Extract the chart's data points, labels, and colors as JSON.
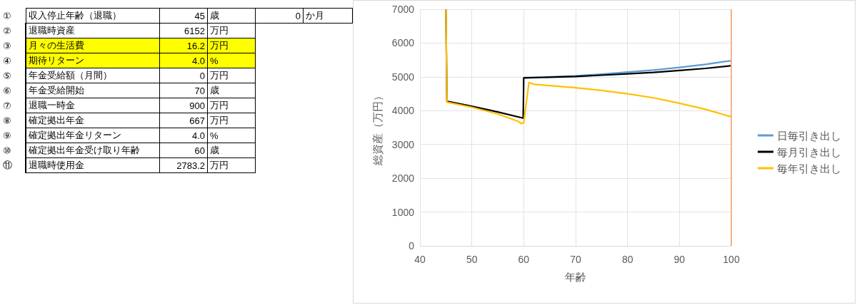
{
  "chart_data": [
    {
      "type": "other",
      "annotations": [
        "①",
        "収入停止年齢（退職）",
        "45",
        "歳",
        "0",
        "か月",
        "②",
        "退職時資産",
        "6152",
        "万円",
        "③",
        "月々の生活費",
        "16.2",
        "万円",
        "④",
        "期待リターン",
        "4.0",
        "%",
        "⑤",
        "年金受給額（月間）",
        "0",
        "万円",
        "⑥",
        "年金受給開始",
        "70",
        "歳",
        "⑦",
        "退職一時金",
        "900",
        "万円",
        "⑧",
        "確定拠出年金",
        "667",
        "万円",
        "⑨",
        "確定拠出年金リターン",
        "4.0",
        "%",
        "⑩",
        "確定拠出年金受け取り年齢",
        "60",
        "歳",
        "⑪",
        "退職時使用金",
        "2783.2",
        "万円"
      ],
      "colors": [
        "#ffffff",
        "#ffffff",
        "#ffff00",
        "#ffff00",
        "#ffffff",
        "#ffffff",
        "#ffffff",
        "#ffffff",
        "#ffffff",
        "#ffffff",
        "#ffffff"
      ]
    },
    {
      "type": "line",
      "xlabel": "年齢",
      "ylabel": "総資産（万円）",
      "xlim": [
        40,
        100
      ],
      "xticks": [
        40,
        50,
        60,
        70,
        80,
        90,
        100
      ],
      "ylim": [
        0,
        7000
      ],
      "yticks": [
        0,
        1000,
        2000,
        3000,
        4000,
        5000,
        6000,
        7000
      ],
      "grid": true,
      "legend": "right",
      "marker": "none",
      "line_style": "solid",
      "ref_lines": [
        {
          "axis": "x",
          "value": 100,
          "color": "#f4b183"
        }
      ],
      "series": [
        {
          "name": "日毎引き出し",
          "color": "#5b9bd5",
          "x": [
            60,
            65,
            70,
            75,
            80,
            85,
            90,
            95,
            100
          ],
          "values": [
            4980,
            5000,
            5030,
            5080,
            5140,
            5200,
            5280,
            5370,
            5480
          ]
        },
        {
          "name": "毎月引き出し",
          "color": "#000000",
          "x": [
            45,
            45.2,
            50,
            55,
            59.9,
            60,
            65,
            70,
            75,
            80,
            85,
            90,
            95,
            100
          ],
          "values": [
            7000,
            4280,
            4130,
            3960,
            3780,
            4970,
            4990,
            5010,
            5050,
            5090,
            5130,
            5190,
            5250,
            5330
          ]
        },
        {
          "name": "毎年引き出し",
          "color": "#ffc000",
          "x": [
            45,
            45.2,
            50,
            55,
            59,
            59.5,
            60,
            61,
            62,
            65,
            70,
            75,
            80,
            85,
            90,
            95,
            100
          ],
          "values": [
            7000,
            4250,
            4100,
            3900,
            3680,
            3620,
            3640,
            4830,
            4780,
            4740,
            4680,
            4600,
            4500,
            4380,
            4220,
            4040,
            3820
          ]
        }
      ]
    }
  ]
}
